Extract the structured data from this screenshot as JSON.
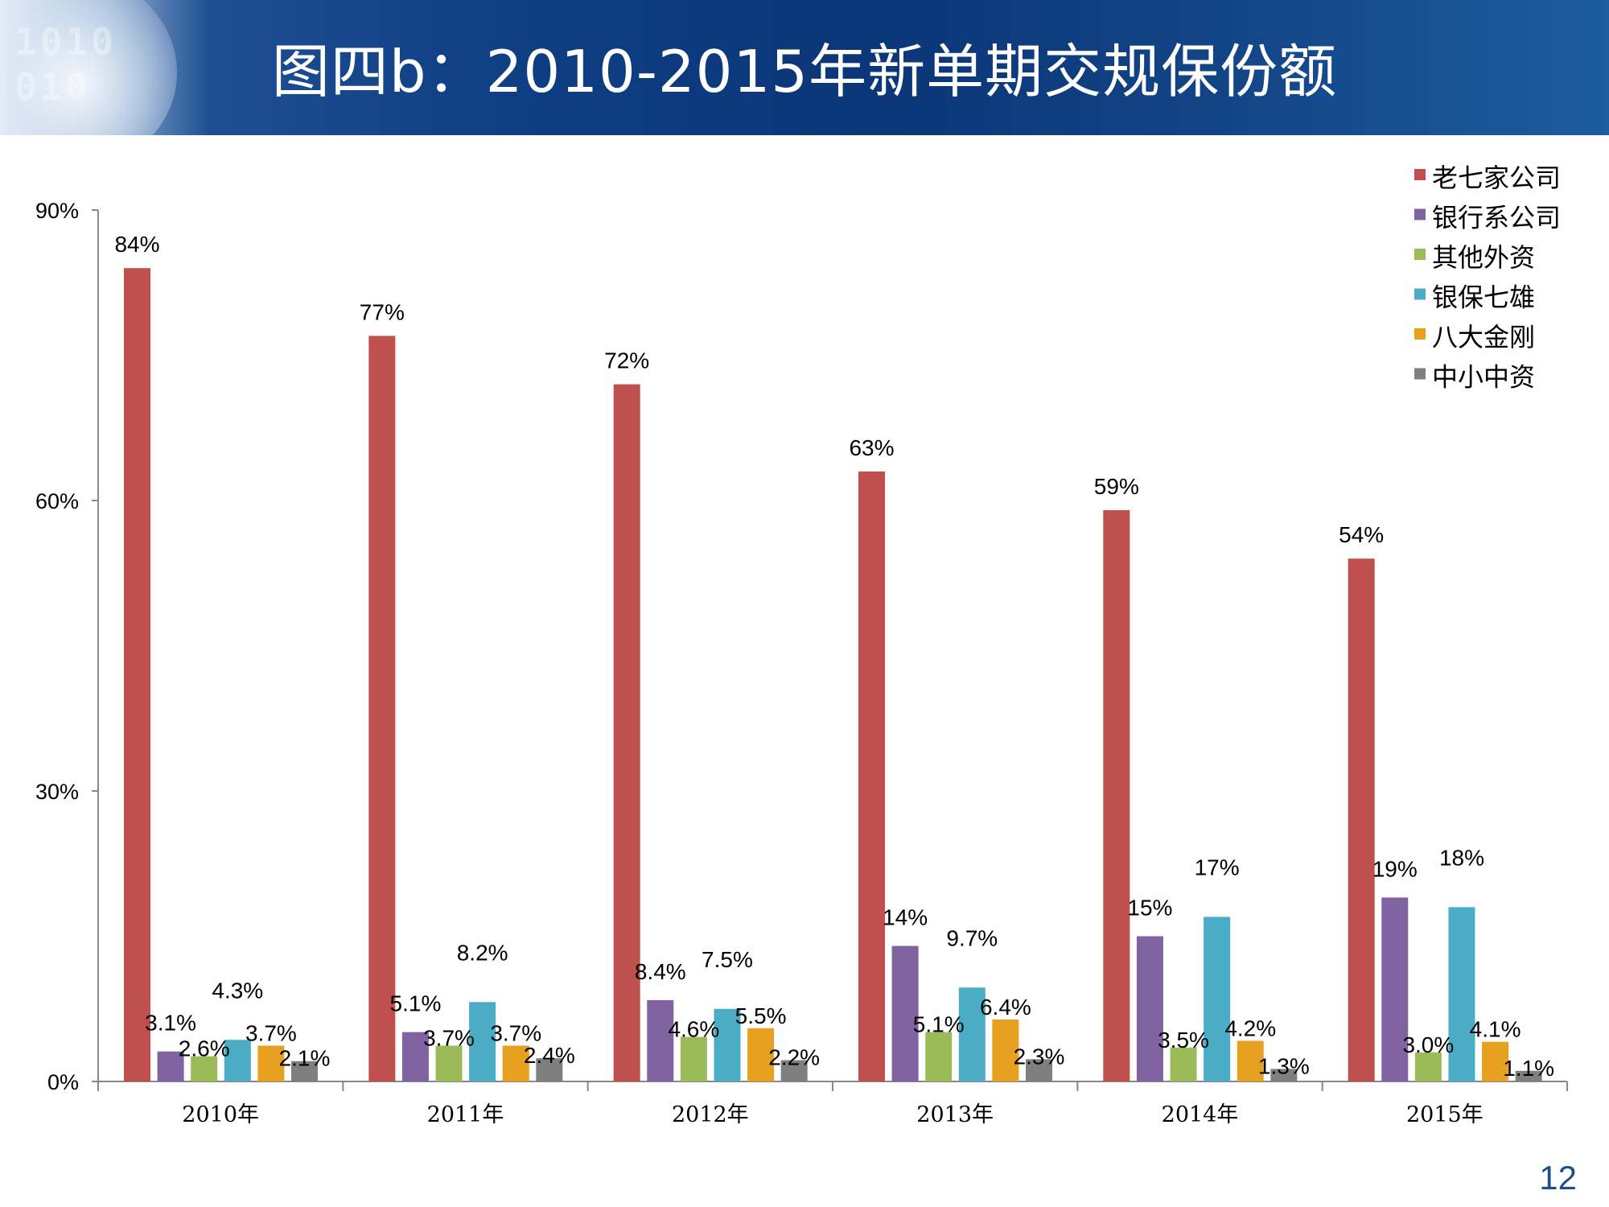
{
  "slide": {
    "title": "图四b：2010-2015年新单期交规保份额",
    "page_number": "12"
  },
  "chart_data": {
    "type": "bar",
    "title": "",
    "xlabel": "",
    "ylabel": "",
    "categories": [
      "2010年",
      "2011年",
      "2012年",
      "2013年",
      "2014年",
      "2015年"
    ],
    "ylim": [
      0,
      90
    ],
    "yticks": [
      0,
      30,
      60,
      90
    ],
    "ytick_labels": [
      "0%",
      "30%",
      "60%",
      "90%"
    ],
    "grid": false,
    "legend_position": "top-right",
    "series": [
      {
        "name": "老七家公司",
        "color": "#c0504d",
        "values": [
          84,
          77,
          72,
          63,
          59,
          54
        ],
        "labels": [
          "84%",
          "77%",
          "72%",
          "63%",
          "59%",
          "54%"
        ]
      },
      {
        "name": "银行系公司",
        "color": "#8064a2",
        "values": [
          3.1,
          5.1,
          8.4,
          14,
          15,
          19
        ],
        "labels": [
          "3.1%",
          "5.1%",
          "8.4%",
          "14%",
          "15%",
          "19%"
        ]
      },
      {
        "name": "其他外资",
        "color": "#9bbb59",
        "values": [
          2.6,
          3.7,
          4.6,
          5.1,
          3.5,
          3.0
        ],
        "labels": [
          "2.6%",
          "3.7%",
          "4.6%",
          "5.1%",
          "3.5%",
          "3.0%"
        ]
      },
      {
        "name": "银保七雄",
        "color": "#4bacc6",
        "values": [
          4.3,
          8.2,
          7.5,
          9.7,
          17,
          18
        ],
        "labels": [
          "4.3%",
          "8.2%",
          "7.5%",
          "9.7%",
          "17%",
          "18%"
        ]
      },
      {
        "name": "八大金刚",
        "color": "#e8a020",
        "values": [
          3.7,
          3.7,
          5.5,
          6.4,
          4.2,
          4.1
        ],
        "labels": [
          "3.7%",
          "3.7%",
          "5.5%",
          "6.4%",
          "4.2%",
          "4.1%"
        ]
      },
      {
        "name": "中小中资",
        "color": "#7f7f7f",
        "values": [
          2.1,
          2.4,
          2.2,
          2.3,
          1.3,
          1.1
        ],
        "labels": [
          "2.1%",
          "2.4%",
          "2.2%",
          "2.3%",
          "1.3%",
          "1.1%"
        ]
      }
    ]
  }
}
